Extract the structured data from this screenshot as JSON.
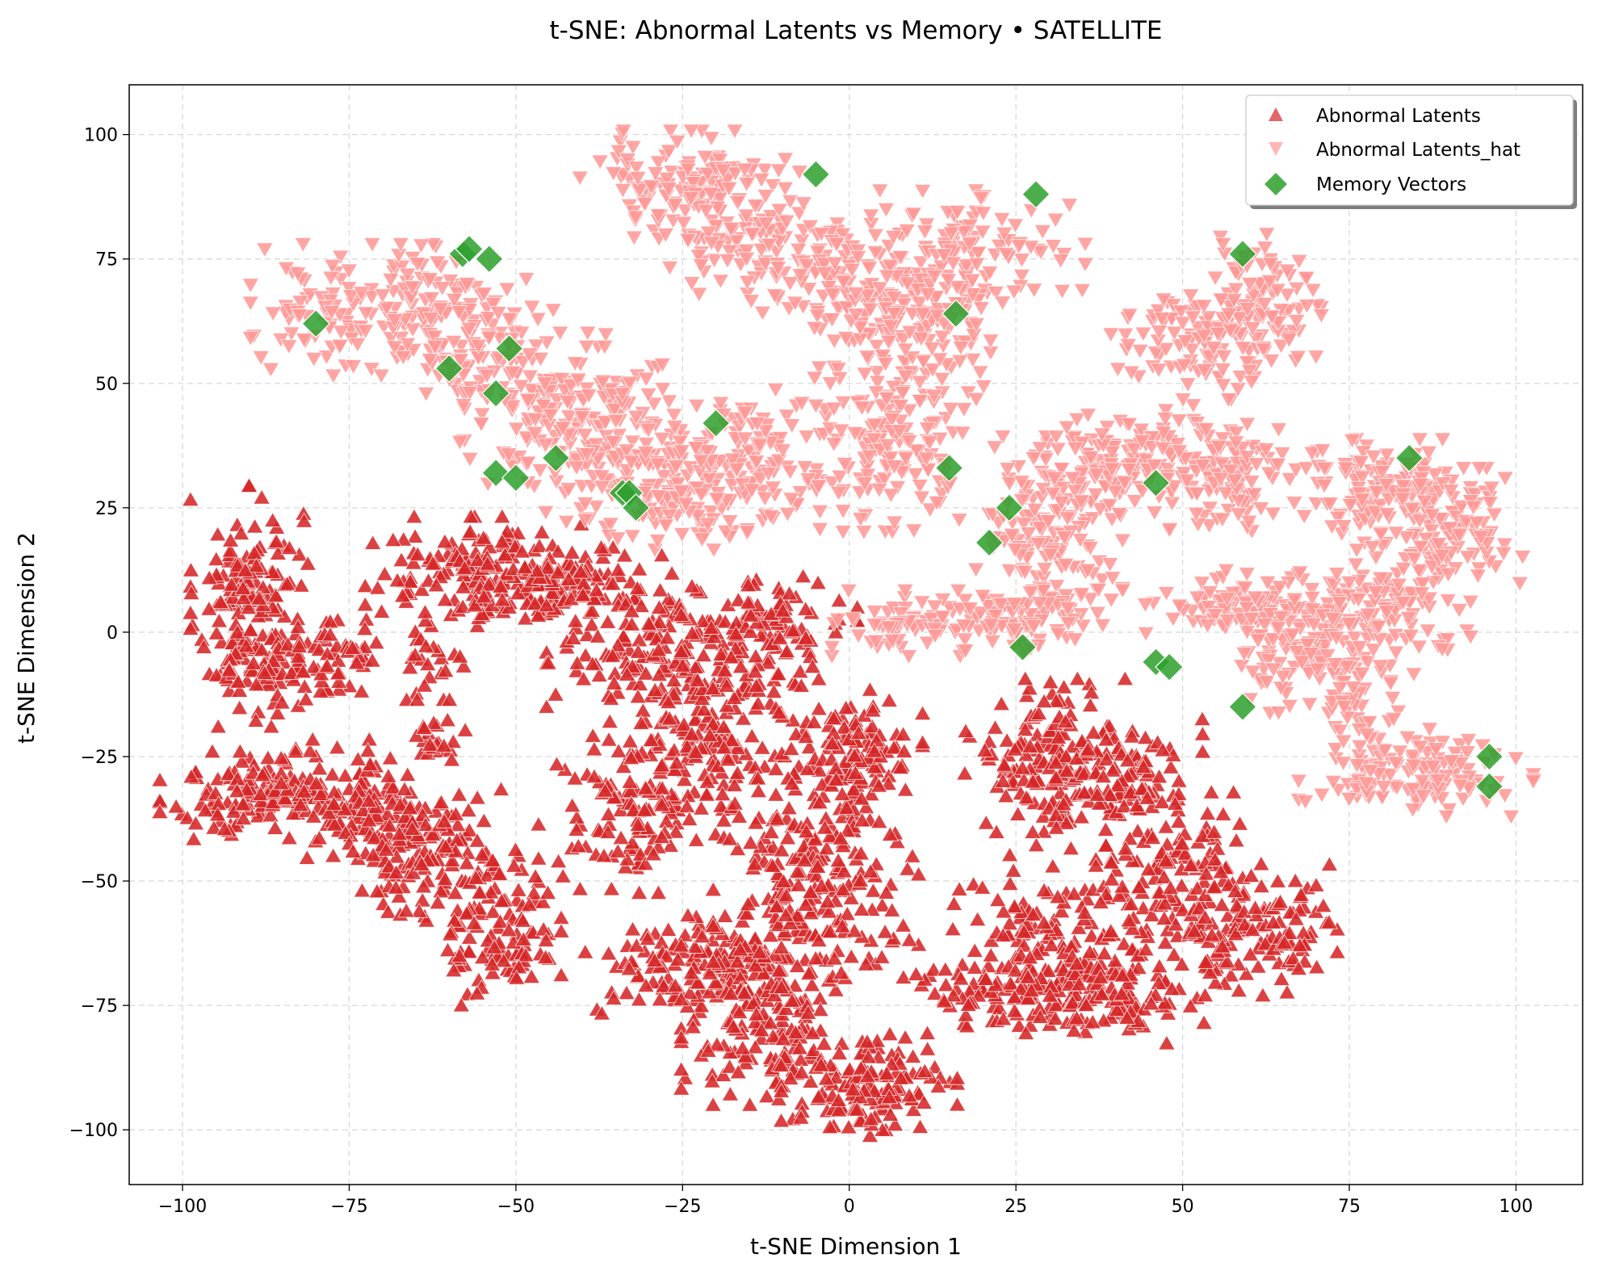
{
  "chart_data": {
    "type": "scatter",
    "title": "t-SNE: Abnormal Latents vs Memory • SATELLITE",
    "xlabel": "t-SNE Dimension 1",
    "ylabel": "t-SNE Dimension 2",
    "xlim": [
      -108,
      110
    ],
    "ylim": [
      -111,
      110
    ],
    "xticks": [
      -100,
      -75,
      -50,
      -25,
      0,
      25,
      50,
      75,
      100
    ],
    "xtick_labels": [
      "−100",
      "−75",
      "−50",
      "−25",
      "0",
      "25",
      "50",
      "75",
      "100"
    ],
    "yticks": [
      -100,
      -75,
      -50,
      -25,
      0,
      25,
      50,
      75,
      100
    ],
    "ytick_labels": [
      "−100",
      "−75",
      "−50",
      "−25",
      "0",
      "25",
      "50",
      "75",
      "100"
    ],
    "grid": true,
    "legend_position": "top-right",
    "series": [
      {
        "name": "Abnormal Latents",
        "marker": "triangle-up",
        "color": "#d62728",
        "clusters": [
          {
            "cx": -90,
            "cy": 5,
            "sx": 4,
            "sy": 11,
            "n": 180
          },
          {
            "cx": -82,
            "cy": -8,
            "sx": 5,
            "sy": 4,
            "n": 60
          },
          {
            "cx": -88,
            "cy": -33,
            "sx": 7,
            "sy": 4,
            "n": 140
          },
          {
            "cx": -72,
            "cy": -35,
            "sx": 6,
            "sy": 6,
            "n": 120
          },
          {
            "cx": -62,
            "cy": -45,
            "sx": 7,
            "sy": 6,
            "n": 150
          },
          {
            "cx": -52,
            "cy": -62,
            "sx": 4,
            "sy": 6,
            "n": 90
          },
          {
            "cx": -75,
            "cy": -3,
            "sx": 3,
            "sy": 3,
            "n": 25
          },
          {
            "cx": -62,
            "cy": -22,
            "sx": 2,
            "sy": 2,
            "n": 20
          },
          {
            "cx": -55,
            "cy": 12,
            "sx": 8,
            "sy": 5,
            "n": 160
          },
          {
            "cx": -42,
            "cy": 8,
            "sx": 7,
            "sy": 4,
            "n": 110
          },
          {
            "cx": -62,
            "cy": -5,
            "sx": 2,
            "sy": 4,
            "n": 25
          },
          {
            "cx": -30,
            "cy": -5,
            "sx": 7,
            "sy": 6,
            "n": 120
          },
          {
            "cx": -20,
            "cy": -20,
            "sx": 6,
            "sy": 10,
            "n": 160
          },
          {
            "cx": -32,
            "cy": -35,
            "sx": 6,
            "sy": 8,
            "n": 120
          },
          {
            "cx": -12,
            "cy": 0,
            "sx": 6,
            "sy": 5,
            "n": 100
          },
          {
            "cx": 0,
            "cy": -25,
            "sx": 5,
            "sy": 6,
            "n": 130
          },
          {
            "cx": -5,
            "cy": -45,
            "sx": 7,
            "sy": 7,
            "n": 110
          },
          {
            "cx": -22,
            "cy": -68,
            "sx": 8,
            "sy": 5,
            "n": 160
          },
          {
            "cx": -12,
            "cy": -82,
            "sx": 6,
            "sy": 6,
            "n": 130
          },
          {
            "cx": 3,
            "cy": -92,
            "sx": 6,
            "sy": 5,
            "n": 130
          },
          {
            "cx": -5,
            "cy": -60,
            "sx": 7,
            "sy": 6,
            "n": 110
          },
          {
            "cx": 30,
            "cy": -25,
            "sx": 6,
            "sy": 7,
            "n": 160
          },
          {
            "cx": 42,
            "cy": -30,
            "sx": 5,
            "sy": 6,
            "n": 90
          },
          {
            "cx": 28,
            "cy": -58,
            "sx": 6,
            "sy": 7,
            "n": 90
          },
          {
            "cx": 25,
            "cy": -72,
            "sx": 8,
            "sy": 4,
            "n": 120
          },
          {
            "cx": 40,
            "cy": -72,
            "sx": 6,
            "sy": 5,
            "n": 100
          },
          {
            "cx": 48,
            "cy": -50,
            "sx": 5,
            "sy": 8,
            "n": 120
          },
          {
            "cx": 60,
            "cy": -60,
            "sx": 6,
            "sy": 6,
            "n": 130
          }
        ]
      },
      {
        "name": "Abnormal Latents_hat",
        "marker": "triangle-down",
        "color": "#ff9896",
        "clusters": [
          {
            "cx": -70,
            "cy": 65,
            "sx": 9,
            "sy": 6,
            "n": 170
          },
          {
            "cx": -55,
            "cy": 58,
            "sx": 6,
            "sy": 6,
            "n": 90
          },
          {
            "cx": -45,
            "cy": 45,
            "sx": 7,
            "sy": 7,
            "n": 130
          },
          {
            "cx": -35,
            "cy": 40,
            "sx": 6,
            "sy": 8,
            "n": 120
          },
          {
            "cx": -22,
            "cy": 30,
            "sx": 8,
            "sy": 6,
            "n": 170
          },
          {
            "cx": -12,
            "cy": 38,
            "sx": 5,
            "sy": 5,
            "n": 60
          },
          {
            "cx": -25,
            "cy": 90,
            "sx": 7,
            "sy": 5,
            "n": 130
          },
          {
            "cx": -15,
            "cy": 80,
            "sx": 6,
            "sy": 6,
            "n": 100
          },
          {
            "cx": -2,
            "cy": 72,
            "sx": 5,
            "sy": 6,
            "n": 90
          },
          {
            "cx": 8,
            "cy": 58,
            "sx": 6,
            "sy": 8,
            "n": 120
          },
          {
            "cx": 6,
            "cy": 38,
            "sx": 5,
            "sy": 8,
            "n": 120
          },
          {
            "cx": 20,
            "cy": 78,
            "sx": 7,
            "sy": 5,
            "n": 100
          },
          {
            "cx": 12,
            "cy": 65,
            "sx": 5,
            "sy": 5,
            "n": 60
          },
          {
            "cx": 35,
            "cy": 32,
            "sx": 6,
            "sy": 5,
            "n": 110
          },
          {
            "cx": 30,
            "cy": 18,
            "sx": 5,
            "sy": 6,
            "n": 90
          },
          {
            "cx": 15,
            "cy": 2,
            "sx": 8,
            "sy": 3,
            "n": 120
          },
          {
            "cx": 30,
            "cy": 5,
            "sx": 5,
            "sy": 4,
            "n": 60
          },
          {
            "cx": 48,
            "cy": 35,
            "sx": 6,
            "sy": 5,
            "n": 100
          },
          {
            "cx": 52,
            "cy": 58,
            "sx": 6,
            "sy": 5,
            "n": 110
          },
          {
            "cx": 62,
            "cy": 68,
            "sx": 4,
            "sy": 6,
            "n": 90
          },
          {
            "cx": 58,
            "cy": 30,
            "sx": 5,
            "sy": 5,
            "n": 80
          },
          {
            "cx": 62,
            "cy": 5,
            "sx": 8,
            "sy": 4,
            "n": 120
          },
          {
            "cx": 68,
            "cy": -5,
            "sx": 6,
            "sy": 5,
            "n": 100
          },
          {
            "cx": 80,
            "cy": 28,
            "sx": 6,
            "sy": 5,
            "n": 130
          },
          {
            "cx": 90,
            "cy": 20,
            "sx": 5,
            "sy": 6,
            "n": 100
          },
          {
            "cx": 80,
            "cy": 5,
            "sx": 6,
            "sy": 6,
            "n": 100
          },
          {
            "cx": 85,
            "cy": -28,
            "sx": 8,
            "sy": 4,
            "n": 130
          },
          {
            "cx": 76,
            "cy": -15,
            "sx": 3,
            "sy": 4,
            "n": 40
          }
        ]
      },
      {
        "name": "Memory Vectors",
        "marker": "diamond",
        "color": "#2ca02c",
        "points": [
          [
            -5,
            92
          ],
          [
            28,
            88
          ],
          [
            -58,
            76
          ],
          [
            -57,
            77
          ],
          [
            -54,
            75
          ],
          [
            -80,
            62
          ],
          [
            59,
            76
          ],
          [
            16,
            64
          ],
          [
            -51,
            57
          ],
          [
            -60,
            53
          ],
          [
            -53,
            48
          ],
          [
            -20,
            42
          ],
          [
            -44,
            35
          ],
          [
            -53,
            32
          ],
          [
            -50,
            31
          ],
          [
            15,
            33
          ],
          [
            84,
            35
          ],
          [
            46,
            30
          ],
          [
            -34,
            28
          ],
          [
            -33,
            28
          ],
          [
            -32,
            25
          ],
          [
            24,
            25
          ],
          [
            21,
            18
          ],
          [
            26,
            -3
          ],
          [
            46,
            -6
          ],
          [
            48,
            -7
          ],
          [
            59,
            -15
          ],
          [
            96,
            -25
          ],
          [
            96,
            -31
          ]
        ]
      }
    ]
  }
}
